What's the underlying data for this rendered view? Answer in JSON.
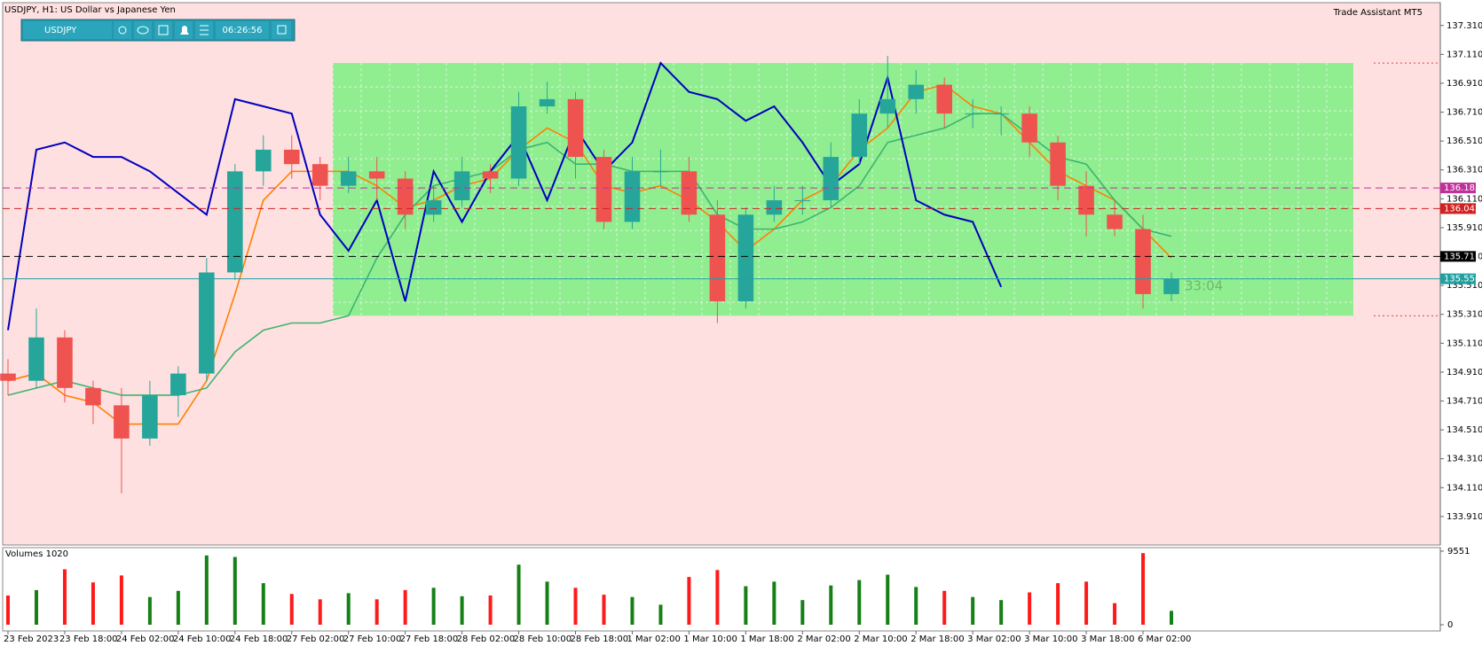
{
  "header_right": "Trade Assistant MT5",
  "toolbar": {
    "symbol": "USDJPY",
    "clock": "06:26:56"
  },
  "chart_data": [
    {
      "type": "candlestick",
      "title": "USDJPY, H1:  US Dollar vs Japanese Yen",
      "annotation": "33:04",
      "categories": [
        "23 Feb 2023",
        null,
        "23 Feb 18:00",
        null,
        "24 Feb 02:00",
        null,
        "24 Feb 10:00",
        null,
        "24 Feb 18:00",
        null,
        "27 Feb 02:00",
        null,
        "27 Feb 10:00",
        null,
        "27 Feb 18:00",
        null,
        "28 Feb 02:00",
        null,
        "28 Feb 10:00",
        null,
        "28 Feb 18:00",
        null,
        "1 Mar 02:00",
        null,
        "1 Mar 10:00",
        null,
        "1 Mar 18:00",
        null,
        "2 Mar 02:00",
        null,
        "2 Mar 10:00",
        null,
        "2 Mar 18:00",
        null,
        "3 Mar 02:00",
        null,
        "3 Mar 10:00",
        null,
        "3 Mar 18:00",
        null,
        "6 Mar 02:00",
        null
      ],
      "open": [
        134.9,
        134.85,
        135.15,
        134.8,
        134.68,
        134.45,
        134.75,
        134.9,
        135.6,
        136.3,
        136.45,
        136.35,
        136.2,
        136.3,
        136.25,
        136.0,
        136.1,
        136.3,
        136.25,
        136.75,
        136.8,
        136.4,
        135.95,
        136.3,
        136.3,
        136.0,
        135.4,
        136.0,
        136.1,
        136.1,
        136.4,
        136.7,
        136.8,
        136.9,
        136.7,
        136.7,
        136.7,
        136.5,
        136.2,
        136.0,
        135.9,
        135.45
      ],
      "high": [
        135.0,
        135.35,
        135.2,
        134.85,
        134.8,
        134.85,
        134.95,
        135.7,
        136.35,
        136.55,
        136.55,
        136.4,
        136.4,
        136.4,
        136.3,
        136.2,
        136.4,
        136.35,
        136.85,
        136.92,
        136.85,
        136.45,
        136.4,
        136.45,
        136.4,
        136.1,
        136.05,
        136.2,
        136.2,
        136.5,
        136.8,
        137.1,
        137.0,
        136.95,
        136.8,
        136.75,
        136.75,
        136.55,
        136.3,
        136.1,
        136.0,
        135.6
      ],
      "low": [
        134.75,
        134.8,
        134.7,
        134.55,
        134.07,
        134.4,
        134.6,
        134.85,
        135.55,
        136.2,
        136.25,
        136.1,
        136.15,
        136.1,
        135.9,
        135.95,
        136.05,
        136.15,
        136.2,
        136.7,
        136.25,
        135.9,
        135.9,
        136.2,
        135.95,
        135.25,
        135.35,
        135.95,
        136.0,
        136.05,
        136.35,
        136.6,
        136.7,
        136.6,
        136.6,
        136.55,
        136.4,
        136.1,
        135.85,
        135.85,
        135.35,
        135.4
      ],
      "close": [
        134.85,
        135.15,
        134.8,
        134.68,
        134.45,
        134.75,
        134.9,
        135.6,
        136.3,
        136.45,
        136.35,
        136.2,
        136.3,
        136.25,
        136.0,
        136.1,
        136.3,
        136.25,
        136.75,
        136.8,
        136.4,
        135.95,
        136.3,
        136.3,
        136.0,
        135.4,
        136.0,
        136.1,
        136.1,
        136.4,
        136.7,
        136.8,
        136.9,
        136.7,
        136.7,
        136.7,
        136.5,
        136.2,
        136.0,
        135.9,
        135.45,
        135.556
      ],
      "up_color": "#26a69a",
      "down_color": "#ef5350",
      "series": [
        {
          "color": "#ff8000",
          "values": [
            134.85,
            134.9,
            134.75,
            134.7,
            134.55,
            134.55,
            134.55,
            134.85,
            135.45,
            136.1,
            136.3,
            136.3,
            136.3,
            136.2,
            136.05,
            136.1,
            136.2,
            136.25,
            136.45,
            136.6,
            136.5,
            136.2,
            136.15,
            136.2,
            136.1,
            135.95,
            135.75,
            135.9,
            136.1,
            136.2,
            136.45,
            136.6,
            136.85,
            136.9,
            136.75,
            136.7,
            136.5,
            136.3,
            136.2,
            136.1,
            135.9,
            135.7
          ]
        },
        {
          "color": "#3cb371",
          "values": [
            134.75,
            134.8,
            134.85,
            134.8,
            134.75,
            134.75,
            134.75,
            134.8,
            135.05,
            135.2,
            135.25,
            135.25,
            135.3,
            135.7,
            136.0,
            136.2,
            136.25,
            136.3,
            136.45,
            136.5,
            136.35,
            136.35,
            136.3,
            136.3,
            136.3,
            136.0,
            135.9,
            135.9,
            135.95,
            136.05,
            136.2,
            136.5,
            136.55,
            136.6,
            136.7,
            136.7,
            136.55,
            136.4,
            136.35,
            136.1,
            135.9,
            135.85
          ]
        },
        {
          "color": "#0000c0",
          "values": [
            135.2,
            136.45,
            136.5,
            136.4,
            136.4,
            136.3,
            136.15,
            136.0,
            136.8,
            136.75,
            136.7,
            136.0,
            135.75,
            136.1,
            135.4,
            136.3,
            135.95,
            136.3,
            136.55,
            136.1,
            136.6,
            136.3,
            136.5,
            137.05,
            136.85,
            136.8,
            136.65,
            136.75,
            136.5,
            136.2,
            136.35,
            136.95,
            136.1,
            136.0,
            135.95,
            135.5,
            null,
            null,
            null,
            null,
            null,
            null
          ]
        }
      ],
      "zone": {
        "top": 137.05,
        "bottom": 135.3,
        "color": "#90ee90"
      },
      "levels": [
        {
          "value": 136.185,
          "color": "#c0309a",
          "style": "dashed"
        },
        {
          "value": 136.042,
          "color": "#d02020",
          "style": "dashed"
        },
        {
          "value": 135.711,
          "color": "#000000",
          "style": "dashed"
        },
        {
          "value": 135.556,
          "color": "#20a0a0",
          "style": "solid"
        }
      ],
      "ylim": [
        133.713,
        137.468
      ],
      "yticks": [
        {
          "value": 133.91,
          "label": "133.910"
        },
        {
          "value": 134.11,
          "label": "134.110"
        },
        {
          "value": 134.31,
          "label": "134.310"
        },
        {
          "value": 134.51,
          "label": "134.510"
        },
        {
          "value": 134.71,
          "label": "134.710"
        },
        {
          "value": 134.91,
          "label": "134.910"
        },
        {
          "value": 135.11,
          "label": "135.110"
        },
        {
          "value": 135.31,
          "label": "135.310"
        },
        {
          "value": 135.51,
          "label": "135.510"
        },
        {
          "value": 135.71,
          "label": "135.710"
        },
        {
          "value": 135.91,
          "label": "135.910"
        },
        {
          "value": 136.11,
          "label": "136.110"
        },
        {
          "value": 136.31,
          "label": "136.310"
        },
        {
          "value": 136.51,
          "label": "136.510"
        },
        {
          "value": 136.71,
          "label": "136.710"
        },
        {
          "value": 136.91,
          "label": "136.910"
        },
        {
          "value": 137.11,
          "label": "137.110"
        },
        {
          "value": 137.31,
          "label": "137.310"
        }
      ]
    },
    {
      "type": "bar",
      "title": "Volumes 1020",
      "values": [
        3800,
        4500,
        7200,
        5500,
        6400,
        3600,
        4400,
        9000,
        8800,
        5400,
        4000,
        3300,
        4100,
        3300,
        4500,
        4800,
        3700,
        3800,
        7800,
        5600,
        4800,
        3900,
        3600,
        2600,
        6200,
        7100,
        5000,
        5600,
        3200,
        5100,
        5800,
        6500,
        4900,
        4400,
        3600,
        3200,
        4200,
        5400,
        5600,
        2800,
        9300,
        1800
      ],
      "up_color": "#158015",
      "down_color": "#ff1a1a",
      "ylim": [
        0,
        9896
      ],
      "yticks": [
        0,
        9551
      ]
    }
  ]
}
